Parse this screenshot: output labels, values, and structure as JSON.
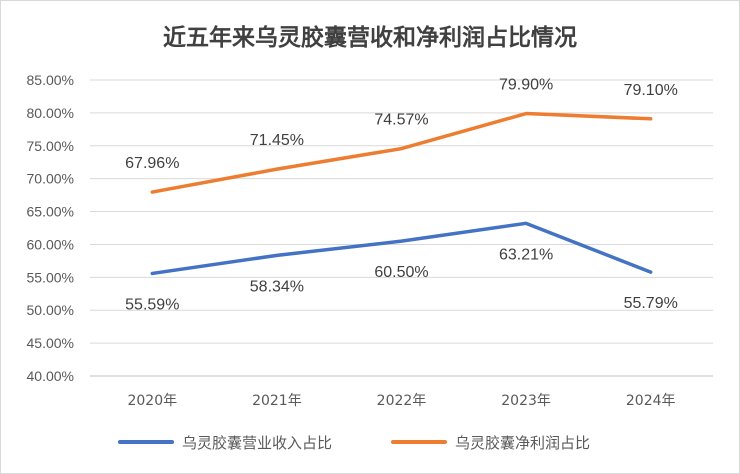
{
  "chart_data": {
    "type": "line",
    "title": "近五年来乌灵胶囊营收和净利润占比情况",
    "categories": [
      "2020年",
      "2021年",
      "2022年",
      "2023年",
      "2024年"
    ],
    "ylim": [
      40,
      85
    ],
    "ystep": 5,
    "y_tick_labels": [
      "40.00%",
      "45.00%",
      "50.00%",
      "55.00%",
      "60.00%",
      "65.00%",
      "70.00%",
      "75.00%",
      "80.00%",
      "85.00%"
    ],
    "grid": true,
    "legend_position": "bottom",
    "series": [
      {
        "name": "乌灵胶囊营业收入占比",
        "color": "#4472C4",
        "values": [
          55.59,
          58.34,
          60.5,
          63.21,
          55.79
        ],
        "labels": [
          "55.59%",
          "58.34%",
          "60.50%",
          "63.21%",
          "55.79%"
        ],
        "label_position": "below"
      },
      {
        "name": "乌灵胶囊净利润占比",
        "color": "#ED7D31",
        "values": [
          67.96,
          71.45,
          74.57,
          79.9,
          79.1
        ],
        "labels": [
          "67.96%",
          "71.45%",
          "74.57%",
          "79.90%",
          "79.10%"
        ],
        "label_position": "above"
      }
    ]
  }
}
